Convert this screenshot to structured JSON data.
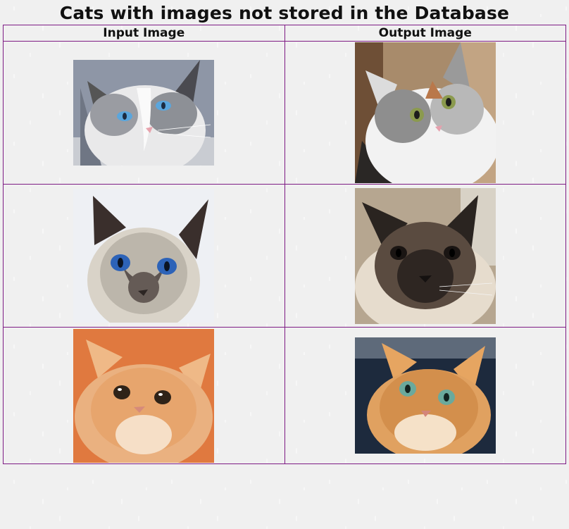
{
  "page": {
    "title": "Cats with images not stored in the Database"
  },
  "table": {
    "headers": [
      "Input Image",
      "Output Image"
    ],
    "rows": [
      {
        "input_image": "ragdoll-cat-blue-eyes",
        "output_image": "calico-longhair-cat-green-eyes"
      },
      {
        "input_image": "siamese-cat-blue-eyes",
        "output_image": "siamese-fluffy-cat"
      },
      {
        "input_image": "ginger-british-shorthair-orange-bg",
        "output_image": "ginger-british-shorthair-green-eyes"
      }
    ]
  },
  "colors": {
    "table_border": "#7e1b84",
    "background": "#f0f0f0"
  }
}
